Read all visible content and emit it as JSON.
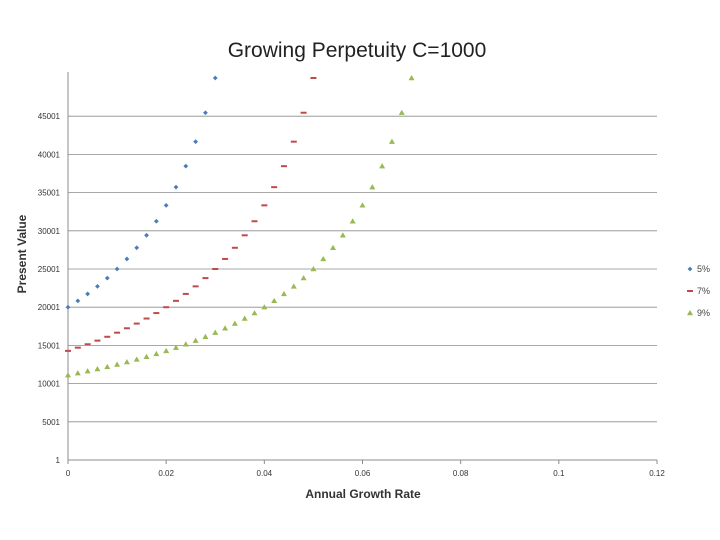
{
  "chart_data": {
    "type": "scatter",
    "title": "Growing Perpetuity C=1000",
    "xlabel": "Annual Growth Rate",
    "ylabel": "Present Value",
    "xlim": [
      0,
      0.12
    ],
    "ylim": [
      1,
      50001
    ],
    "x_ticks": [
      0,
      0.02,
      0.04,
      0.06,
      0.08,
      0.1,
      0.12
    ],
    "x_tick_labels": [
      "0",
      "0.02",
      "0.04",
      "0.06",
      "0.08",
      "0.1",
      "0.12"
    ],
    "y_ticks": [
      1,
      5001,
      10001,
      15001,
      20001,
      25001,
      30001,
      35001,
      40001,
      45001
    ],
    "y_tick_labels": [
      "1",
      "5001",
      "10001",
      "15001",
      "20001",
      "25001",
      "30001",
      "35001",
      "40001",
      "45001"
    ],
    "legend_position": "right",
    "grid": true,
    "series": [
      {
        "name": "5%",
        "color": "#4a7ebb",
        "marker": "diamond",
        "x": [
          0,
          0.002,
          0.004,
          0.006,
          0.008,
          0.01,
          0.012,
          0.014,
          0.016,
          0.018,
          0.02,
          0.022,
          0.024,
          0.026,
          0.028,
          0.03
        ],
        "y": [
          20000,
          20833,
          21739,
          22727,
          23810,
          25000,
          26316,
          27778,
          29412,
          31250,
          33333,
          35714,
          38462,
          41667,
          45455,
          50000
        ]
      },
      {
        "name": "7%",
        "color": "#be4b48",
        "marker": "dash",
        "x": [
          0,
          0.002,
          0.004,
          0.006,
          0.008,
          0.01,
          0.012,
          0.014,
          0.016,
          0.018,
          0.02,
          0.022,
          0.024,
          0.026,
          0.028,
          0.03,
          0.032,
          0.034,
          0.036,
          0.038,
          0.04,
          0.042,
          0.044,
          0.046,
          0.048,
          0.05
        ],
        "y": [
          14286,
          14706,
          15152,
          15625,
          16129,
          16667,
          17241,
          17857,
          18519,
          19231,
          20000,
          20833,
          21739,
          22727,
          23810,
          25000,
          26316,
          27778,
          29412,
          31250,
          33333,
          35714,
          38462,
          41667,
          45455,
          50000
        ]
      },
      {
        "name": "9%",
        "color": "#98b954",
        "marker": "triangle",
        "x": [
          0,
          0.002,
          0.004,
          0.006,
          0.008,
          0.01,
          0.012,
          0.014,
          0.016,
          0.018,
          0.02,
          0.022,
          0.024,
          0.026,
          0.028,
          0.03,
          0.032,
          0.034,
          0.036,
          0.038,
          0.04,
          0.042,
          0.044,
          0.046,
          0.048,
          0.05,
          0.052,
          0.054,
          0.056,
          0.058,
          0.06,
          0.062,
          0.064,
          0.066,
          0.068,
          0.07
        ],
        "y": [
          11111,
          11364,
          11628,
          11905,
          12195,
          12500,
          12821,
          13158,
          13514,
          13889,
          14286,
          14706,
          15152,
          15625,
          16129,
          16667,
          17241,
          17857,
          18519,
          19231,
          20000,
          20833,
          21739,
          22727,
          23810,
          25000,
          26316,
          27778,
          29412,
          31250,
          33333,
          35714,
          38462,
          41667,
          45455,
          50000
        ]
      }
    ]
  }
}
